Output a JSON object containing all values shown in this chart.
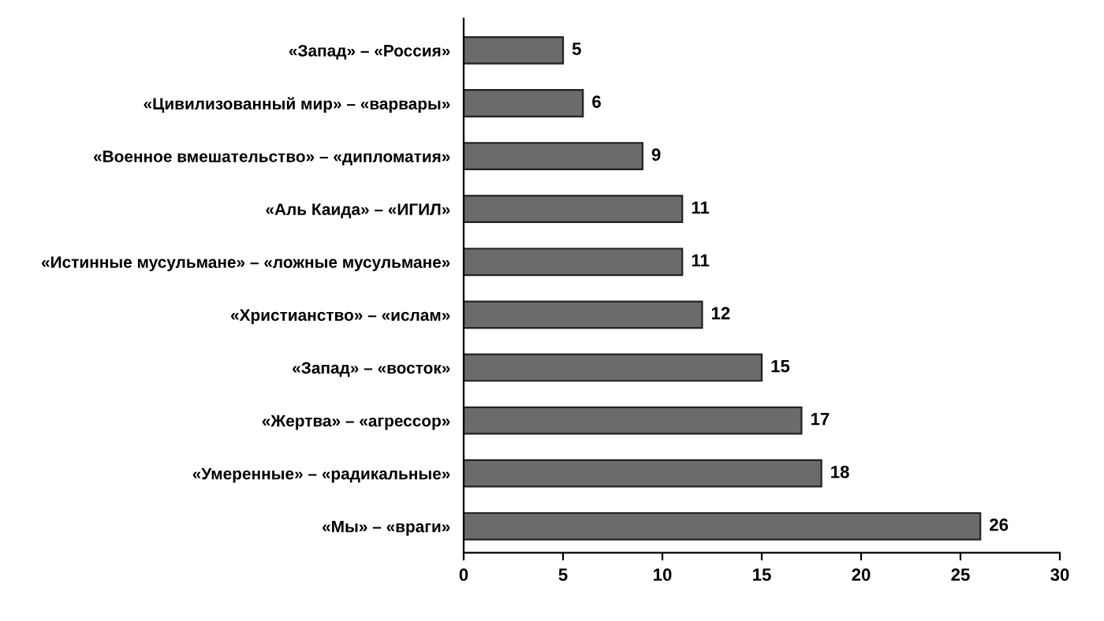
{
  "chart_data": {
    "type": "bar",
    "orientation": "horizontal",
    "categories": [
      "«Запад» – «Россия»",
      "«Цивилизованный мир» – «варвары»",
      "«Военное вмешательство» – «дипломатия»",
      "«Аль Каида» – «ИГИЛ»",
      "«Истинные мусульмане» – «ложные мусульмане»",
      "«Христианство» – «ислам»",
      "«Запад» – «восток»",
      "«Жертва» – «агрессор»",
      "«Умеренные» – «радикальные»",
      "«Мы» – «враги»"
    ],
    "values": [
      5,
      6,
      9,
      11,
      11,
      12,
      15,
      17,
      18,
      26
    ],
    "color": "#6b6b6b",
    "xlim": [
      0,
      30
    ],
    "xticks": [
      0,
      5,
      10,
      15,
      20,
      25,
      30
    ],
    "grid": false,
    "data_labels": true
  }
}
